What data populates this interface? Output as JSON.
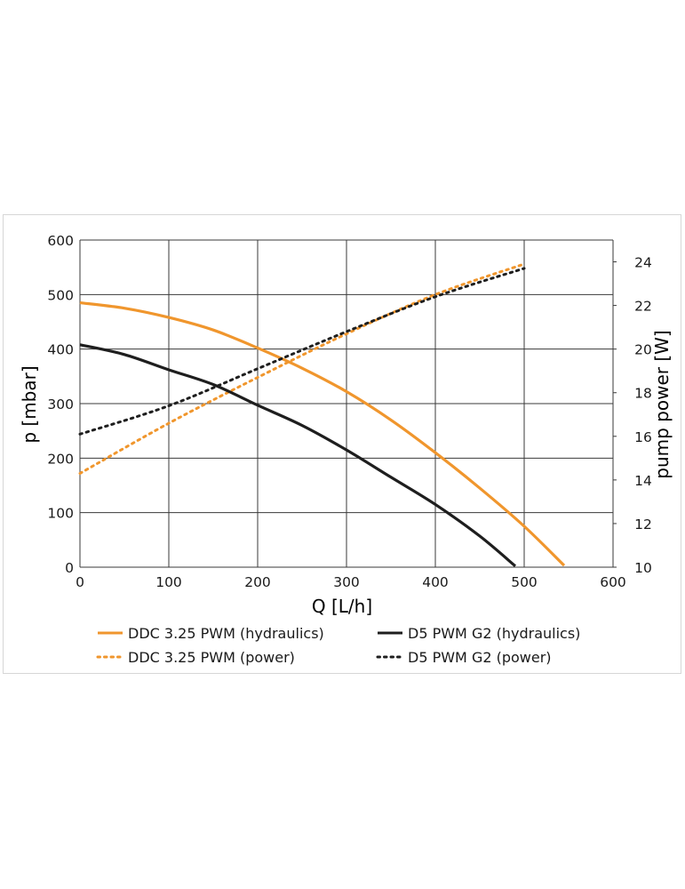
{
  "chart_data": {
    "type": "line",
    "xlabel": "Q [L/h]",
    "ylabel": "p [mbar]",
    "y2label": "pump power [W]",
    "xlim": [
      0,
      600
    ],
    "ylim": [
      0,
      600
    ],
    "y2lim": [
      10,
      25
    ],
    "xticks": [
      0,
      100,
      200,
      300,
      400,
      500,
      600
    ],
    "yticks": [
      0,
      100,
      200,
      300,
      400,
      500,
      600
    ],
    "y2ticks": [
      10,
      12,
      14,
      16,
      18,
      20,
      22,
      24
    ],
    "grid": true,
    "legend_position": "bottom",
    "series": [
      {
        "name": "DDC 3.25 PWM (hydraulics)",
        "axis": "left",
        "style": "solid",
        "color": "#f0962d",
        "x": [
          0,
          50,
          100,
          150,
          200,
          250,
          300,
          350,
          400,
          450,
          500,
          545
        ],
        "y": [
          485,
          475,
          458,
          435,
          402,
          365,
          322,
          270,
          210,
          145,
          75,
          3
        ]
      },
      {
        "name": "DDC 3.25 PWM (power)",
        "axis": "right",
        "style": "dotted",
        "color": "#f0962d",
        "x": [
          0,
          100,
          200,
          300,
          400,
          500
        ],
        "y": [
          14.3,
          16.6,
          18.7,
          20.7,
          22.5,
          23.9
        ]
      },
      {
        "name": "D5 PWM G2 (hydraulics)",
        "axis": "left",
        "style": "solid",
        "color": "#1e1e1e",
        "x": [
          0,
          50,
          100,
          150,
          200,
          250,
          300,
          350,
          400,
          450,
          490
        ],
        "y": [
          408,
          390,
          362,
          335,
          297,
          260,
          215,
          165,
          115,
          57,
          2
        ]
      },
      {
        "name": "D5 PWM G2 (power)",
        "axis": "right",
        "style": "dotted",
        "color": "#1e1e1e",
        "x": [
          0,
          100,
          200,
          300,
          400,
          500
        ],
        "y": [
          16.1,
          17.4,
          19.1,
          20.8,
          22.4,
          23.7
        ]
      }
    ]
  }
}
